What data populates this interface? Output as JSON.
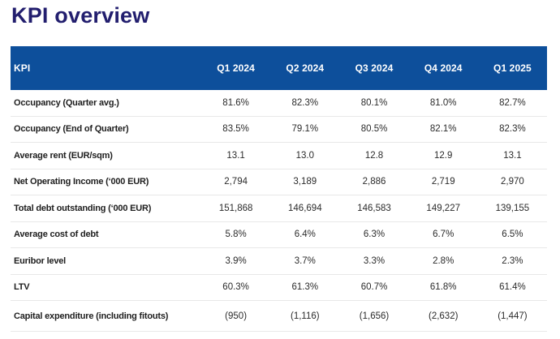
{
  "page": {
    "title": "KPI overview"
  },
  "colors": {
    "header_bg": "#0d4f9b",
    "header_text": "#ffffff",
    "title_text": "#221e6e",
    "row_divider": "#e8e8e8",
    "label_text": "#1e1e1e",
    "value_text": "#2b2b2b"
  },
  "table": {
    "columns": [
      "KPI",
      "Q1 2024",
      "Q2 2024",
      "Q3 2024",
      "Q4 2024",
      "Q1 2025"
    ],
    "rows": [
      {
        "label": "Occupancy (Quarter avg.)",
        "values": [
          "81.6%",
          "82.3%",
          "80.1%",
          "81.0%",
          "82.7%"
        ]
      },
      {
        "label": "Occupancy (End of Quarter)",
        "values": [
          "83.5%",
          "79.1%",
          "80.5%",
          "82.1%",
          "82.3%"
        ]
      },
      {
        "label": "Average rent (EUR/sqm)",
        "values": [
          "13.1",
          "13.0",
          "12.8",
          "12.9",
          "13.1"
        ]
      },
      {
        "label": "Net Operating Income (‘000 EUR)",
        "values": [
          "2,794",
          "3,189",
          "2,886",
          "2,719",
          "2,970"
        ]
      },
      {
        "label": "Total debt outstanding (‘000 EUR)",
        "values": [
          "151,868",
          "146,694",
          "146,583",
          "149,227",
          "139,155"
        ]
      },
      {
        "label": "Average cost of debt",
        "values": [
          "5.8%",
          "6.4%",
          "6.3%",
          "6.7%",
          "6.5%"
        ]
      },
      {
        "label": "Euribor level",
        "values": [
          "3.9%",
          "3.7%",
          "3.3%",
          "2.8%",
          "2.3%"
        ]
      },
      {
        "label": "LTV",
        "values": [
          "60.3%",
          "61.3%",
          "60.7%",
          "61.8%",
          "61.4%"
        ]
      },
      {
        "label": "Capital expenditure (including fitouts)",
        "values": [
          "(950)",
          "(1,116)",
          "(1,656)",
          "(2,632)",
          "(1,447)"
        ]
      }
    ]
  }
}
